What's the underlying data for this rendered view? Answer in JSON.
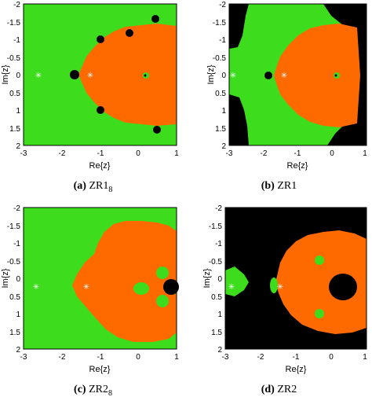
{
  "panels": [
    {
      "letter": "(a)",
      "label": "ZR1",
      "subscript": "8"
    },
    {
      "letter": "(b)",
      "label": "ZR1",
      "subscript": ""
    },
    {
      "letter": "(c)",
      "label": "ZR2",
      "subscript": "8"
    },
    {
      "letter": "(d)",
      "label": "ZR2",
      "subscript": ""
    }
  ],
  "axes": {
    "xlabel": "Re{z}",
    "ylabel": "Im{z}",
    "top_row_xticks": [
      "-3",
      "-2",
      "-1",
      "0",
      "1"
    ],
    "bottom_row_xticks": [
      "-3",
      "-2",
      "-1",
      "0",
      "1"
    ],
    "yticks": [
      "-2",
      "-1.5",
      "-1",
      "-0.5",
      "0",
      "0.5",
      "1",
      "1.5",
      "2"
    ],
    "xlim": [
      -3,
      1
    ],
    "ylim": [
      -2,
      2
    ]
  },
  "colors": {
    "green": "#3ddc1c",
    "orange": "#ff6a00",
    "black": "#000000",
    "root_marker": "#ffffff"
  }
}
